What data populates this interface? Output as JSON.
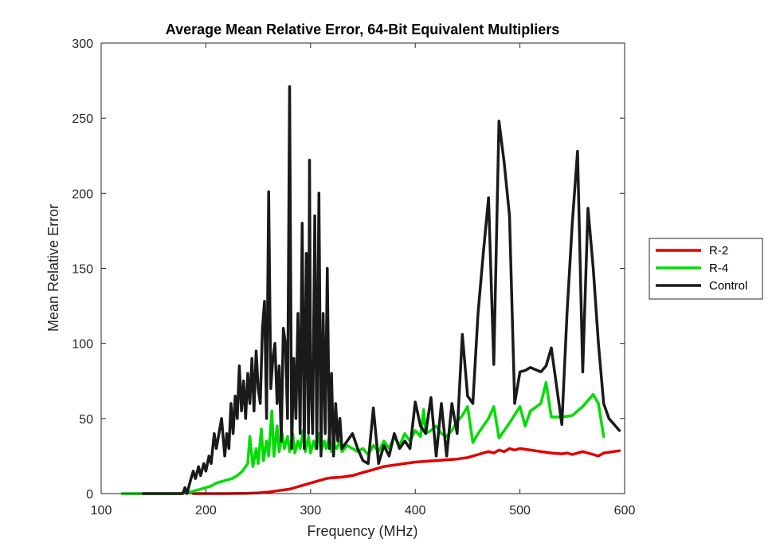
{
  "chart_data": {
    "type": "line",
    "title": "Average Mean Relative Error, 64-Bit Equivalent Multipliers",
    "xlabel": "Frequency (MHz)",
    "ylabel": "Mean Relative Error",
    "xlim": [
      100,
      600
    ],
    "ylim": [
      0,
      300
    ],
    "xticks": [
      100,
      200,
      300,
      400,
      500,
      600
    ],
    "yticks": [
      0,
      50,
      100,
      150,
      200,
      250,
      300
    ],
    "grid": false,
    "legend_position": "outside-right",
    "series": [
      {
        "name": "R-2",
        "color": "#e00000",
        "x": [
          188,
          200,
          220,
          240,
          250,
          260,
          270,
          280,
          285,
          290,
          295,
          300,
          305,
          310,
          315,
          320,
          330,
          340,
          350,
          360,
          370,
          380,
          390,
          400,
          410,
          420,
          430,
          440,
          450,
          455,
          460,
          465,
          470,
          475,
          480,
          485,
          490,
          495,
          500,
          510,
          520,
          530,
          540,
          545,
          550,
          560,
          570,
          575,
          580,
          585,
          595
        ],
        "values": [
          0,
          0,
          0,
          0.2,
          0.5,
          1,
          2,
          3,
          4,
          5,
          6,
          7,
          8,
          9,
          10,
          10.5,
          11,
          12,
          14,
          16,
          18,
          19,
          20,
          21,
          21.5,
          22,
          22.5,
          23,
          24,
          25,
          26,
          27,
          28,
          27,
          29,
          28,
          30,
          29,
          30,
          29,
          28,
          27,
          26.5,
          27,
          26,
          28,
          26,
          25,
          27,
          27.5,
          28.5
        ]
      },
      {
        "name": "R-4",
        "color": "#00dd00",
        "x": [
          120,
          140,
          160,
          175,
          185,
          190,
          195,
          200,
          205,
          210,
          215,
          220,
          225,
          230,
          235,
          240,
          242,
          245,
          248,
          250,
          253,
          255,
          258,
          260,
          263,
          265,
          268,
          270,
          273,
          275,
          278,
          280,
          283,
          285,
          288,
          290,
          293,
          295,
          298,
          300,
          303,
          305,
          308,
          310,
          313,
          315,
          318,
          320,
          323,
          325,
          328,
          330,
          335,
          340,
          345,
          350,
          355,
          360,
          365,
          370,
          375,
          380,
          385,
          390,
          395,
          400,
          405,
          408,
          410,
          415,
          420,
          425,
          430,
          435,
          440,
          445,
          450,
          455,
          460,
          465,
          470,
          475,
          480,
          490,
          500,
          505,
          510,
          520,
          525,
          530,
          540,
          550,
          560,
          570,
          575,
          580
        ],
        "values": [
          0,
          0,
          0,
          0,
          1,
          2,
          3,
          4,
          5,
          7,
          8,
          9,
          10,
          12,
          15,
          20,
          38,
          18,
          30,
          20,
          43,
          22,
          35,
          25,
          55,
          25,
          45,
          28,
          40,
          30,
          38,
          28,
          40,
          27,
          35,
          30,
          42,
          28,
          38,
          27,
          35,
          30,
          40,
          28,
          35,
          30,
          38,
          28,
          32,
          30,
          35,
          28,
          32,
          30,
          28,
          30,
          26,
          32,
          28,
          35,
          30,
          38,
          32,
          40,
          35,
          42,
          38,
          56,
          40,
          42,
          45,
          40,
          38,
          42,
          48,
          52,
          58,
          34,
          40,
          45,
          50,
          58,
          37,
          47,
          58,
          45,
          55,
          60,
          74,
          51,
          51,
          52,
          58,
          66,
          60,
          38
        ]
      },
      {
        "name": "Control",
        "color": "#1a1a1a",
        "x": [
          140,
          160,
          170,
          178,
          180,
          182,
          185,
          188,
          190,
          193,
          195,
          198,
          200,
          203,
          205,
          208,
          210,
          212,
          215,
          218,
          220,
          222,
          224,
          226,
          228,
          230,
          232,
          234,
          236,
          238,
          240,
          242,
          244,
          246,
          248,
          250,
          252,
          254,
          256,
          258,
          260,
          262,
          264,
          266,
          268,
          270,
          272,
          274,
          276,
          278,
          280,
          282,
          284,
          286,
          288,
          290,
          292,
          294,
          296,
          298,
          299,
          300,
          302,
          304,
          306,
          308,
          310,
          312,
          314,
          316,
          318,
          320,
          322,
          324,
          326,
          328,
          330,
          335,
          340,
          345,
          350,
          355,
          360,
          365,
          370,
          375,
          380,
          385,
          390,
          395,
          400,
          405,
          410,
          415,
          420,
          425,
          430,
          435,
          440,
          445,
          450,
          455,
          460,
          465,
          470,
          475,
          480,
          485,
          490,
          495,
          500,
          505,
          510,
          520,
          525,
          530,
          540,
          545,
          550,
          555,
          560,
          565,
          570,
          575,
          580,
          585,
          595
        ],
        "values": [
          0,
          0,
          0,
          0,
          4,
          0,
          8,
          15,
          10,
          18,
          12,
          20,
          15,
          25,
          20,
          40,
          30,
          38,
          50,
          25,
          40,
          30,
          60,
          40,
          65,
          50,
          85,
          55,
          75,
          50,
          80,
          60,
          90,
          55,
          95,
          70,
          60,
          110,
          128,
          50,
          201,
          70,
          90,
          100,
          60,
          85,
          35,
          110,
          100,
          50,
          271,
          30,
          90,
          50,
          120,
          40,
          180,
          30,
          160,
          40,
          222,
          80,
          40,
          185,
          30,
          200,
          25,
          120,
          40,
          150,
          30,
          80,
          25,
          60,
          35,
          50,
          30,
          35,
          40,
          30,
          22,
          20,
          57,
          20,
          32,
          25,
          40,
          30,
          35,
          30,
          61,
          45,
          40,
          64,
          25,
          60,
          25,
          60,
          40,
          106,
          65,
          60,
          120,
          160,
          197,
          86,
          248,
          220,
          185,
          60,
          81,
          82,
          84,
          81,
          85,
          97,
          46,
          120,
          180,
          228,
          81,
          190,
          150,
          100,
          60,
          50,
          42
        ]
      }
    ]
  }
}
